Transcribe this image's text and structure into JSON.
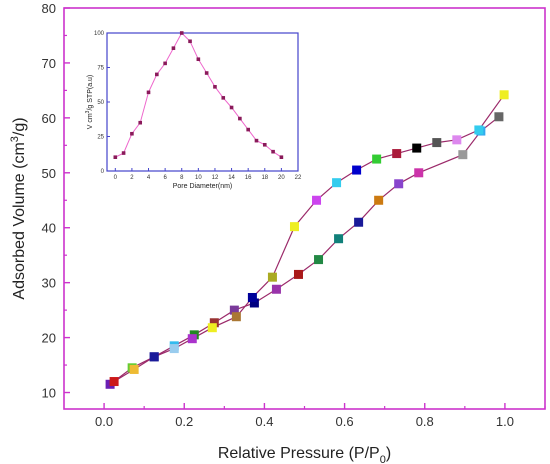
{
  "chart_data": [
    {
      "type": "scatter",
      "xlabel": "Relative Pressure (P/P",
      "xlabel_sub": "0",
      "xlabel_tail": ")",
      "ylabel": "Adsorbed Volume (cm",
      "ylabel_sup": "3",
      "ylabel_tail": "/g)",
      "xlim": [
        -0.1,
        1.1
      ],
      "ylim": [
        7,
        80
      ],
      "x_ticks": [
        0.0,
        0.2,
        0.4,
        0.6,
        0.8,
        1.0
      ],
      "x_tick_labels": [
        "0.0",
        "0.2",
        "0.4",
        "0.6",
        "0.8",
        "1.0"
      ],
      "y_ticks": [
        10,
        20,
        30,
        40,
        50,
        60,
        70,
        80
      ],
      "y_tick_labels": [
        "10",
        "20",
        "30",
        "40",
        "50",
        "60",
        "70",
        "80"
      ],
      "grid": false,
      "colors": {
        "axis": "#cc33cc",
        "line": "#9b2a6a"
      },
      "series": [
        {
          "x": [
            0.015,
            0.07,
            0.125,
            0.175,
            0.225,
            0.275,
            0.325,
            0.375,
            0.43,
            0.485,
            0.535,
            0.585,
            0.635,
            0.685,
            0.735,
            0.785,
            0.895,
            0.94,
            0.985
          ],
          "y": [
            11.5,
            14.5,
            16.5,
            18.5,
            20.5,
            22.7,
            25.0,
            26.3,
            28.8,
            31.5,
            34.2,
            38.0,
            41.0,
            45.0,
            48.0,
            50.0,
            53.3,
            57.6,
            60.2
          ],
          "colors": [
            "#6b1fb4",
            "#66cc33",
            "#1a1a99",
            "#33bbee",
            "#228822",
            "#993333",
            "#7a3a9a",
            "#000080",
            "#9933aa",
            "#aa1a1a",
            "#228844",
            "#11807a",
            "#1a1a99",
            "#cc7a11",
            "#8844cc",
            "#cc33aa",
            "#999999",
            "#33aaee",
            "#666666"
          ]
        },
        {
          "x": [
            0.998,
            0.935,
            0.88,
            0.83,
            0.78,
            0.73,
            0.68,
            0.63,
            0.58,
            0.53,
            0.475,
            0.42,
            0.37,
            0.33,
            0.27,
            0.22,
            0.175,
            0.125,
            0.075,
            0.025
          ],
          "y": [
            64.2,
            57.8,
            56.0,
            55.5,
            54.5,
            53.5,
            52.5,
            50.5,
            48.2,
            45.0,
            40.2,
            31.0,
            27.3,
            23.8,
            21.8,
            19.8,
            18.0,
            16.5,
            14.2,
            12.0
          ],
          "colors": [
            "#eeee22",
            "#33ccee",
            "#dd88ee",
            "#555555",
            "#000000",
            "#aa1a3a",
            "#33cc33",
            "#0000cc",
            "#33ccee",
            "#cc44ee",
            "#eeee22",
            "#aaaa22",
            "#000099",
            "#aa7733",
            "#eeee22",
            "#aa33cc",
            "#99ccee",
            "#1a1a99",
            "#eebb33",
            "#cc1a1a"
          ]
        }
      ]
    },
    {
      "type": "line",
      "xlabel": "Pore Diameter(nm)",
      "ylabel": "V cm",
      "ylabel_sup": "3",
      "ylabel_tail": "/g STP(a.u)",
      "xlim": [
        -1,
        22
      ],
      "ylim": [
        0,
        100
      ],
      "x_ticks": [
        0,
        2,
        4,
        6,
        8,
        10,
        12,
        14,
        16,
        18,
        20,
        22
      ],
      "x_tick_labels": [
        "0",
        "2",
        "4",
        "6",
        "8",
        "10",
        "12",
        "14",
        "16",
        "18",
        "20",
        "22"
      ],
      "y_ticks": [
        0,
        25,
        50,
        75,
        100
      ],
      "y_tick_labels": [
        "0",
        "25",
        "50",
        "75",
        "100"
      ],
      "grid": false,
      "colors": {
        "axis": "#4444cc",
        "line": "#ee66cc",
        "marker": "#8a1a5a"
      },
      "series": [
        {
          "x": [
            0,
            1,
            2,
            3,
            4,
            5,
            6,
            7,
            8,
            9,
            10,
            11,
            12,
            13,
            14,
            15,
            16,
            17,
            18,
            19,
            20
          ],
          "y": [
            10,
            13,
            27,
            35,
            57,
            70,
            78,
            89,
            100,
            94,
            81,
            71,
            61,
            53,
            46,
            38,
            30,
            22,
            19,
            14,
            10
          ]
        }
      ]
    }
  ]
}
